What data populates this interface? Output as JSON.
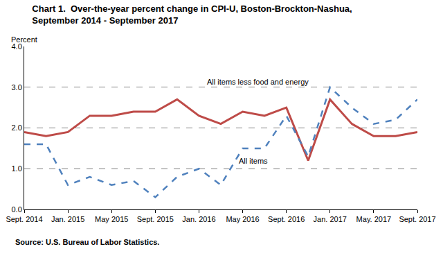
{
  "chart_data": {
    "type": "line",
    "title": "Chart 1.  Over-the-year percent change in CPI-U, Boston-Brockton-Nashua,\nSeptember 2014 - September 2017",
    "ylabel": "Percent",
    "annotations": [
      "Source: U.S. Bureau of Labor Statistics."
    ],
    "categories": [
      "Sept. 2014",
      null,
      "Jan. 2015",
      null,
      "May 2015",
      null,
      "Sept. 2015",
      null,
      "Jan. 2016",
      null,
      "May 2016",
      null,
      "Sept. 2016",
      null,
      "Jan. 2017",
      null,
      "May. 2017",
      null,
      "Sept. 2017"
    ],
    "series": [
      {
        "name": "All items less food and energy",
        "color": "#be4b48",
        "line_style": "solid",
        "values": [
          1.9,
          1.8,
          1.9,
          2.3,
          2.3,
          2.4,
          2.4,
          2.7,
          2.3,
          2.1,
          2.4,
          2.3,
          2.5,
          1.2,
          2.7,
          2.1,
          1.8,
          1.8,
          1.9
        ]
      },
      {
        "name": "All items",
        "color": "#4f81bd",
        "line_style": "dashed",
        "values": [
          1.6,
          1.6,
          0.6,
          0.8,
          0.6,
          0.7,
          0.3,
          0.8,
          1.0,
          0.6,
          1.5,
          1.5,
          2.3,
          1.3,
          3.0,
          2.5,
          2.1,
          2.2,
          2.7
        ]
      }
    ],
    "ylim": [
      0,
      4
    ],
    "yticks": [
      {
        "value": 0,
        "label": "0.0"
      },
      {
        "value": 1,
        "label": "1.0"
      },
      {
        "value": 2,
        "label": "2.0"
      },
      {
        "value": 3,
        "label": "3.0"
      },
      {
        "value": 4,
        "label": "4.0"
      }
    ],
    "grid": true
  }
}
